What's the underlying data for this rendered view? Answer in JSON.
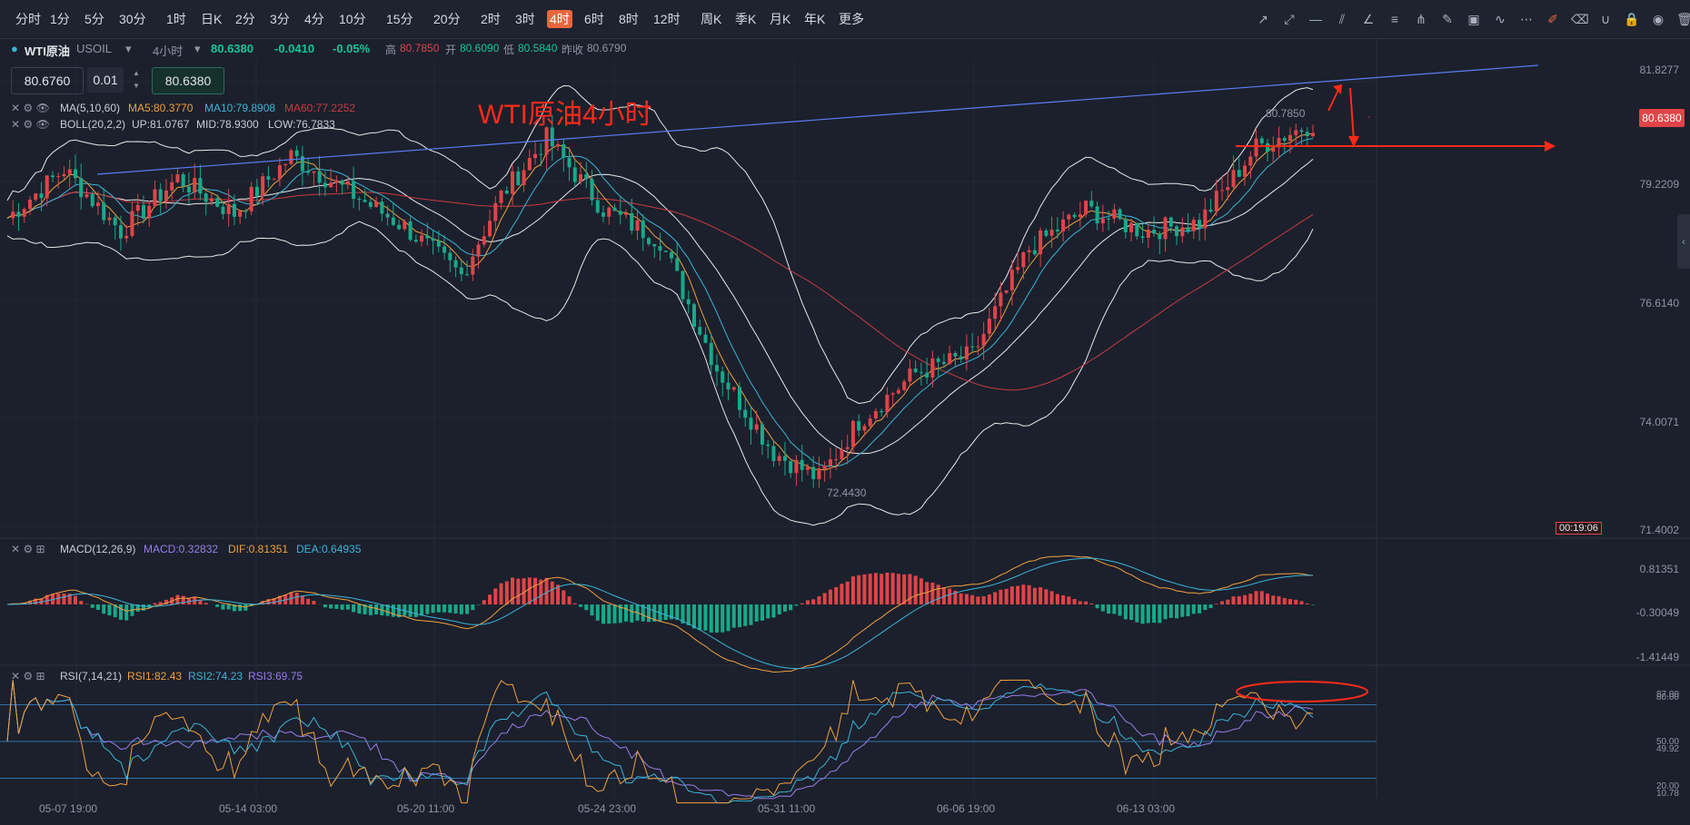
{
  "timeframes": [
    "分时",
    "1分",
    "5分",
    "30分",
    "1时",
    "日K",
    "2分",
    "3分",
    "4分",
    "10分",
    "15分",
    "20分",
    "2时",
    "3时",
    "4时",
    "6时",
    "8时",
    "12时",
    "周K",
    "季K",
    "月K",
    "年K",
    "更多"
  ],
  "active_timeframe": "4时",
  "tools": [
    "ray-icon",
    "extended-line-icon",
    "horizontal-line-icon",
    "parallel-channel-icon",
    "trend-angle-icon",
    "fib-icon",
    "pitchfork-icon",
    "brush-icon",
    "image-icon",
    "pattern-icon",
    "more-icon",
    "note-icon",
    "eraser-icon",
    "magnet-icon",
    "lock-icon",
    "eye-icon",
    "trash-icon"
  ],
  "symbol": {
    "name": "WTI原油",
    "code": "USOIL",
    "period": "4小时",
    "price": "80.6380",
    "change": "-0.0410",
    "change_pct": "-0.05%",
    "high_label": "高",
    "high": "80.7850",
    "open_label": "开",
    "open": "80.6090",
    "low_label": "低",
    "low": "80.5840",
    "prev_label": "昨收",
    "prev": "80.6790"
  },
  "order_box": {
    "sell": "80.6760",
    "qty": "0.01",
    "buy": "80.6380"
  },
  "annotation_title": "WTI原油4小时",
  "ma": {
    "label": "MA(5,10,60)",
    "ma5": "MA5:80.3770",
    "ma10": "MA10:79.8908",
    "ma60": "MA60:77.2252"
  },
  "boll": {
    "label": "BOLL(20,2,2)",
    "up": "UP:81.0767",
    "mid": "MID:78.9300",
    "low": "LOW:76.7833"
  },
  "price_axis": [
    "81.8277",
    "79.2209",
    "76.6140",
    "74.0071",
    "71.4002"
  ],
  "last_price_tag": "80.6380",
  "high_marker": "80.7850",
  "low_marker": "72.4430",
  "countdown": "00:19:06",
  "macd": {
    "label": "MACD(12,26,9)",
    "macd": "MACD:0.32832",
    "dif": "DIF:0.81351",
    "dea": "DEA:0.64935",
    "axis": [
      "0.81351",
      "-0.30049",
      "-1.41449"
    ]
  },
  "rsi": {
    "label": "RSI(7,14,21)",
    "rsi1": "RSI1:82.43",
    "rsi2": "RSI2:74.23",
    "rsi3": "RSI3:69.75",
    "axis": [
      "87.00",
      "80.00",
      "50.00",
      "49.92",
      "20.00",
      "10.78"
    ]
  },
  "x_labels": [
    "05-07 19:00",
    "05-14 03:00",
    "05-20 11:00",
    "05-24 23:00",
    "05-31 11:00",
    "06-06 19:00",
    "06-13 03:00"
  ],
  "colors": {
    "up": "#e04448",
    "down": "#18a98a",
    "ma5": "#f0a040",
    "ma10": "#3bb4d8",
    "ma60": "#c83a40",
    "boll": "#e8e8e8",
    "trend": "#5b7cf0",
    "annotation": "#ff2a1a",
    "rsi2": "#3bb4d8",
    "rsi3": "#9a7ce8"
  },
  "chart_data": {
    "type": "line",
    "instrument": "WTI原油",
    "price_path": [
      [
        0,
        78.5
      ],
      [
        10,
        79.6
      ],
      [
        20,
        78.2
      ],
      [
        30,
        79.4
      ],
      [
        40,
        78.6
      ],
      [
        50,
        79.9
      ],
      [
        60,
        79.1
      ],
      [
        70,
        78.3
      ],
      [
        80,
        77.2
      ],
      [
        87,
        79.0
      ],
      [
        95,
        80.3
      ],
      [
        105,
        78.7
      ],
      [
        115,
        78.0
      ],
      [
        125,
        75.1
      ],
      [
        135,
        73.2
      ],
      [
        143,
        72.6
      ],
      [
        150,
        73.9
      ],
      [
        160,
        75.0
      ],
      [
        170,
        75.4
      ],
      [
        180,
        77.8
      ],
      [
        190,
        78.7
      ],
      [
        200,
        78.2
      ],
      [
        210,
        78.4
      ],
      [
        220,
        80.1
      ],
      [
        230,
        80.64
      ]
    ],
    "ylim": [
      71.4002,
      81.8277
    ]
  }
}
